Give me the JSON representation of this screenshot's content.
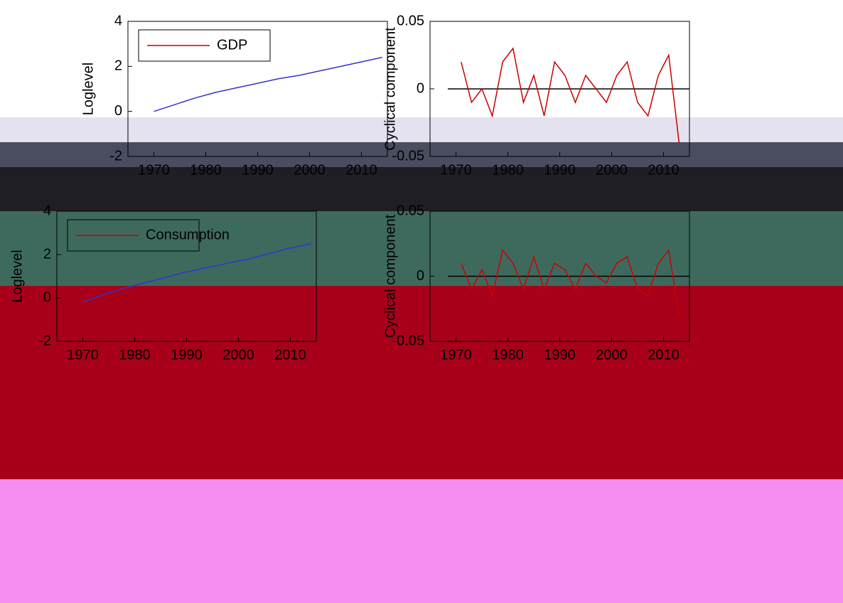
{
  "chart_data": [
    {
      "type": "line",
      "ylabel": "Loglevel",
      "legend": "upper left",
      "x": [
        1970,
        1974,
        1978,
        1982,
        1986,
        1990,
        1994,
        1998,
        2002,
        2006,
        2010,
        2014
      ],
      "series": [
        {
          "name": "GDP",
          "color": "#3333cc",
          "values": [
            0,
            0.3,
            0.6,
            0.85,
            1.05,
            1.25,
            1.45,
            1.6,
            1.8,
            2.0,
            2.2,
            2.4
          ]
        }
      ],
      "xlim": [
        1965,
        2015
      ],
      "xticks": [
        1970,
        1980,
        1990,
        2000,
        2010
      ],
      "ylim": [
        -2,
        4
      ],
      "yticks": [
        -2,
        0,
        2,
        4
      ]
    },
    {
      "type": "line",
      "ylabel": "Cyclical component",
      "reference_line": 0,
      "x": [
        1971,
        1973,
        1975,
        1977,
        1979,
        1981,
        1983,
        1985,
        1987,
        1989,
        1991,
        1993,
        1995,
        1997,
        1999,
        2001,
        2003,
        2005,
        2007,
        2009,
        2011,
        2013
      ],
      "series": [
        {
          "name": "GDP",
          "color": "#cc0000",
          "values": [
            0.02,
            -0.01,
            0,
            -0.02,
            0.02,
            0.03,
            -0.01,
            0.01,
            -0.02,
            0.02,
            0.01,
            -0.01,
            0.01,
            0,
            -0.01,
            0.01,
            0.02,
            -0.01,
            -0.02,
            0.01,
            0.025,
            -0.04
          ]
        }
      ],
      "xlim": [
        1965,
        2015
      ],
      "xticks": [
        1970,
        1980,
        1990,
        2000,
        2010
      ],
      "ylim": [
        -0.05,
        0.05
      ],
      "yticks": [
        -0.05,
        0,
        0.05
      ]
    },
    {
      "type": "line",
      "ylabel": "Loglevel",
      "legend": "upper left",
      "x": [
        1970,
        1974,
        1978,
        1982,
        1986,
        1990,
        1994,
        1998,
        2002,
        2006,
        2010,
        2014
      ],
      "series": [
        {
          "name": "Consumption",
          "color": "#3333cc",
          "values": [
            -0.2,
            0.15,
            0.45,
            0.7,
            0.95,
            1.2,
            1.4,
            1.6,
            1.8,
            2.05,
            2.3,
            2.5
          ]
        }
      ],
      "xlim": [
        1965,
        2015
      ],
      "xticks": [
        1970,
        1980,
        1990,
        2000,
        2010
      ],
      "ylim": [
        -2,
        4
      ],
      "yticks": [
        -2,
        0,
        2,
        4
      ]
    },
    {
      "type": "line",
      "ylabel": "Cyclical component",
      "reference_line": 0,
      "x": [
        1971,
        1973,
        1975,
        1977,
        1979,
        1981,
        1983,
        1985,
        1987,
        1989,
        1991,
        1993,
        1995,
        1997,
        1999,
        2001,
        2003,
        2005,
        2007,
        2009,
        2011,
        2013
      ],
      "series": [
        {
          "name": "Consumption",
          "color": "#cc0000",
          "values": [
            0.01,
            -0.01,
            0.005,
            -0.015,
            0.02,
            0.01,
            -0.01,
            0.015,
            -0.01,
            0.01,
            0.005,
            -0.01,
            0.01,
            0,
            -0.005,
            0.01,
            0.015,
            -0.01,
            -0.015,
            0.01,
            0.02,
            -0.03
          ]
        }
      ],
      "xlim": [
        1965,
        2015
      ],
      "xticks": [
        1970,
        1980,
        1990,
        2000,
        2010
      ],
      "ylim": [
        -0.05,
        0.05
      ],
      "yticks": [
        -0.05,
        0,
        0.05
      ]
    }
  ]
}
